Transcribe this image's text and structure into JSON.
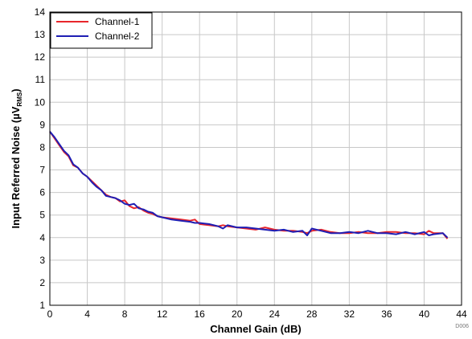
{
  "chart_data": {
    "type": "line",
    "xlabel": "Channel Gain (dB)",
    "ylabel": "Input Referred Noise (µV",
    "ylabel_sub": "RMS",
    "ylabel_close": ")",
    "xlim": [
      0,
      44
    ],
    "ylim": [
      1,
      14
    ],
    "xticks": [
      "0",
      "4",
      "8",
      "12",
      "16",
      "20",
      "24",
      "28",
      "32",
      "36",
      "40",
      "44"
    ],
    "yticks": [
      "1",
      "2",
      "3",
      "4",
      "5",
      "6",
      "7",
      "8",
      "9",
      "10",
      "11",
      "12",
      "13",
      "14"
    ],
    "grid": true,
    "legend_position": "top-left",
    "series": [
      {
        "name": "Channel-1",
        "color": "#e8262c",
        "x": [
          0,
          0.5,
          1,
          1.5,
          2,
          2.5,
          3,
          3.5,
          4,
          4.5,
          5,
          5.5,
          6,
          6.5,
          7,
          7.5,
          8,
          8.5,
          9,
          9.5,
          10,
          10.5,
          11,
          11.5,
          12,
          13,
          14,
          15,
          15.5,
          16,
          17,
          18,
          18.5,
          19,
          20,
          21,
          22,
          23,
          24,
          25,
          26,
          27,
          27.5,
          28,
          29,
          30,
          31,
          32,
          33,
          34,
          35,
          36,
          37,
          38,
          39,
          40,
          40.5,
          41,
          42,
          42.5
        ],
        "y": [
          8.7,
          8.4,
          8.1,
          7.8,
          7.6,
          7.2,
          7.1,
          6.85,
          6.7,
          6.5,
          6.3,
          6.1,
          5.9,
          5.8,
          5.75,
          5.6,
          5.65,
          5.4,
          5.3,
          5.35,
          5.2,
          5.1,
          5.05,
          4.95,
          4.9,
          4.85,
          4.8,
          4.75,
          4.8,
          4.6,
          4.55,
          4.5,
          4.55,
          4.5,
          4.45,
          4.4,
          4.35,
          4.45,
          4.35,
          4.3,
          4.3,
          4.25,
          4.2,
          4.3,
          4.35,
          4.25,
          4.2,
          4.2,
          4.25,
          4.2,
          4.2,
          4.25,
          4.25,
          4.2,
          4.2,
          4.15,
          4.3,
          4.2,
          4.2,
          3.95
        ]
      },
      {
        "name": "Channel-2",
        "color": "#1e1eb4",
        "x": [
          0,
          0.5,
          1,
          1.5,
          2,
          2.5,
          3,
          3.5,
          4,
          4.5,
          5,
          5.5,
          6,
          6.5,
          7,
          7.5,
          8,
          8.5,
          9,
          9.5,
          10,
          10.5,
          11,
          11.5,
          12,
          13,
          14,
          15,
          15.5,
          16,
          17,
          18,
          18.5,
          19,
          20,
          21,
          22,
          23,
          24,
          25,
          26,
          27,
          27.5,
          28,
          29,
          30,
          31,
          32,
          33,
          34,
          35,
          36,
          37,
          38,
          39,
          40,
          40.5,
          41,
          42,
          42.5
        ],
        "y": [
          8.7,
          8.45,
          8.15,
          7.85,
          7.65,
          7.25,
          7.1,
          6.85,
          6.7,
          6.45,
          6.25,
          6.1,
          5.85,
          5.8,
          5.75,
          5.65,
          5.5,
          5.45,
          5.5,
          5.3,
          5.25,
          5.15,
          5.1,
          4.95,
          4.9,
          4.8,
          4.75,
          4.7,
          4.65,
          4.65,
          4.6,
          4.5,
          4.4,
          4.55,
          4.45,
          4.45,
          4.4,
          4.35,
          4.3,
          4.35,
          4.25,
          4.3,
          4.1,
          4.4,
          4.3,
          4.2,
          4.2,
          4.25,
          4.2,
          4.3,
          4.2,
          4.2,
          4.15,
          4.25,
          4.15,
          4.25,
          4.1,
          4.15,
          4.2,
          4.0
        ]
      }
    ],
    "figure_code": "D006"
  }
}
